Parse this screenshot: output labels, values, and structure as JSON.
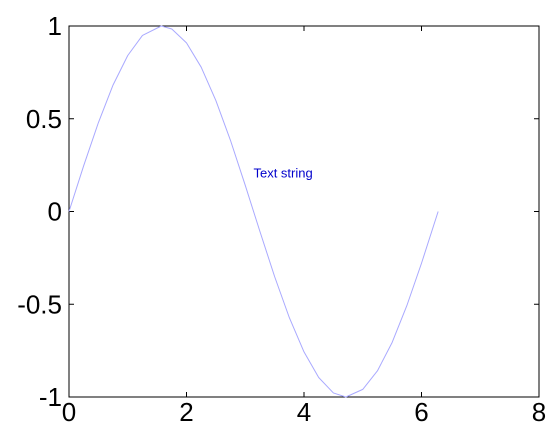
{
  "chart_data": {
    "type": "line",
    "title": "",
    "xlabel": "",
    "ylabel": "",
    "xlim": [
      0,
      8
    ],
    "ylim": [
      -1,
      1
    ],
    "x_ticks": [
      0,
      2,
      4,
      6,
      8
    ],
    "y_ticks": [
      -1,
      -0.5,
      0,
      0.5,
      1
    ],
    "x_tick_labels": [
      "0",
      "2",
      "4",
      "6",
      "8"
    ],
    "y_tick_labels": [
      "-1",
      "-0.5",
      "0",
      "0.5",
      "1"
    ],
    "grid": false,
    "series": [
      {
        "color": "#a9a9ff",
        "x": [
          0,
          0.25,
          0.5,
          0.75,
          1.0,
          1.25,
          1.5708,
          1.75,
          2.0,
          2.25,
          2.5,
          2.75,
          3.0,
          3.1416,
          3.25,
          3.5,
          3.75,
          4.0,
          4.25,
          4.5,
          4.7124,
          5.0,
          5.25,
          5.5,
          5.75,
          6.0,
          6.2832
        ],
        "y": [
          0,
          0.247,
          0.479,
          0.682,
          0.841,
          0.949,
          1.0,
          0.984,
          0.909,
          0.778,
          0.598,
          0.382,
          0.141,
          0.0,
          -0.108,
          -0.351,
          -0.572,
          -0.757,
          -0.895,
          -0.978,
          -1.0,
          -0.959,
          -0.859,
          -0.706,
          -0.508,
          -0.279,
          0.0
        ]
      }
    ],
    "annotations": [
      {
        "text": "Text string",
        "x": 3.14,
        "y": 0.21,
        "color": "#0000cc"
      }
    ]
  }
}
